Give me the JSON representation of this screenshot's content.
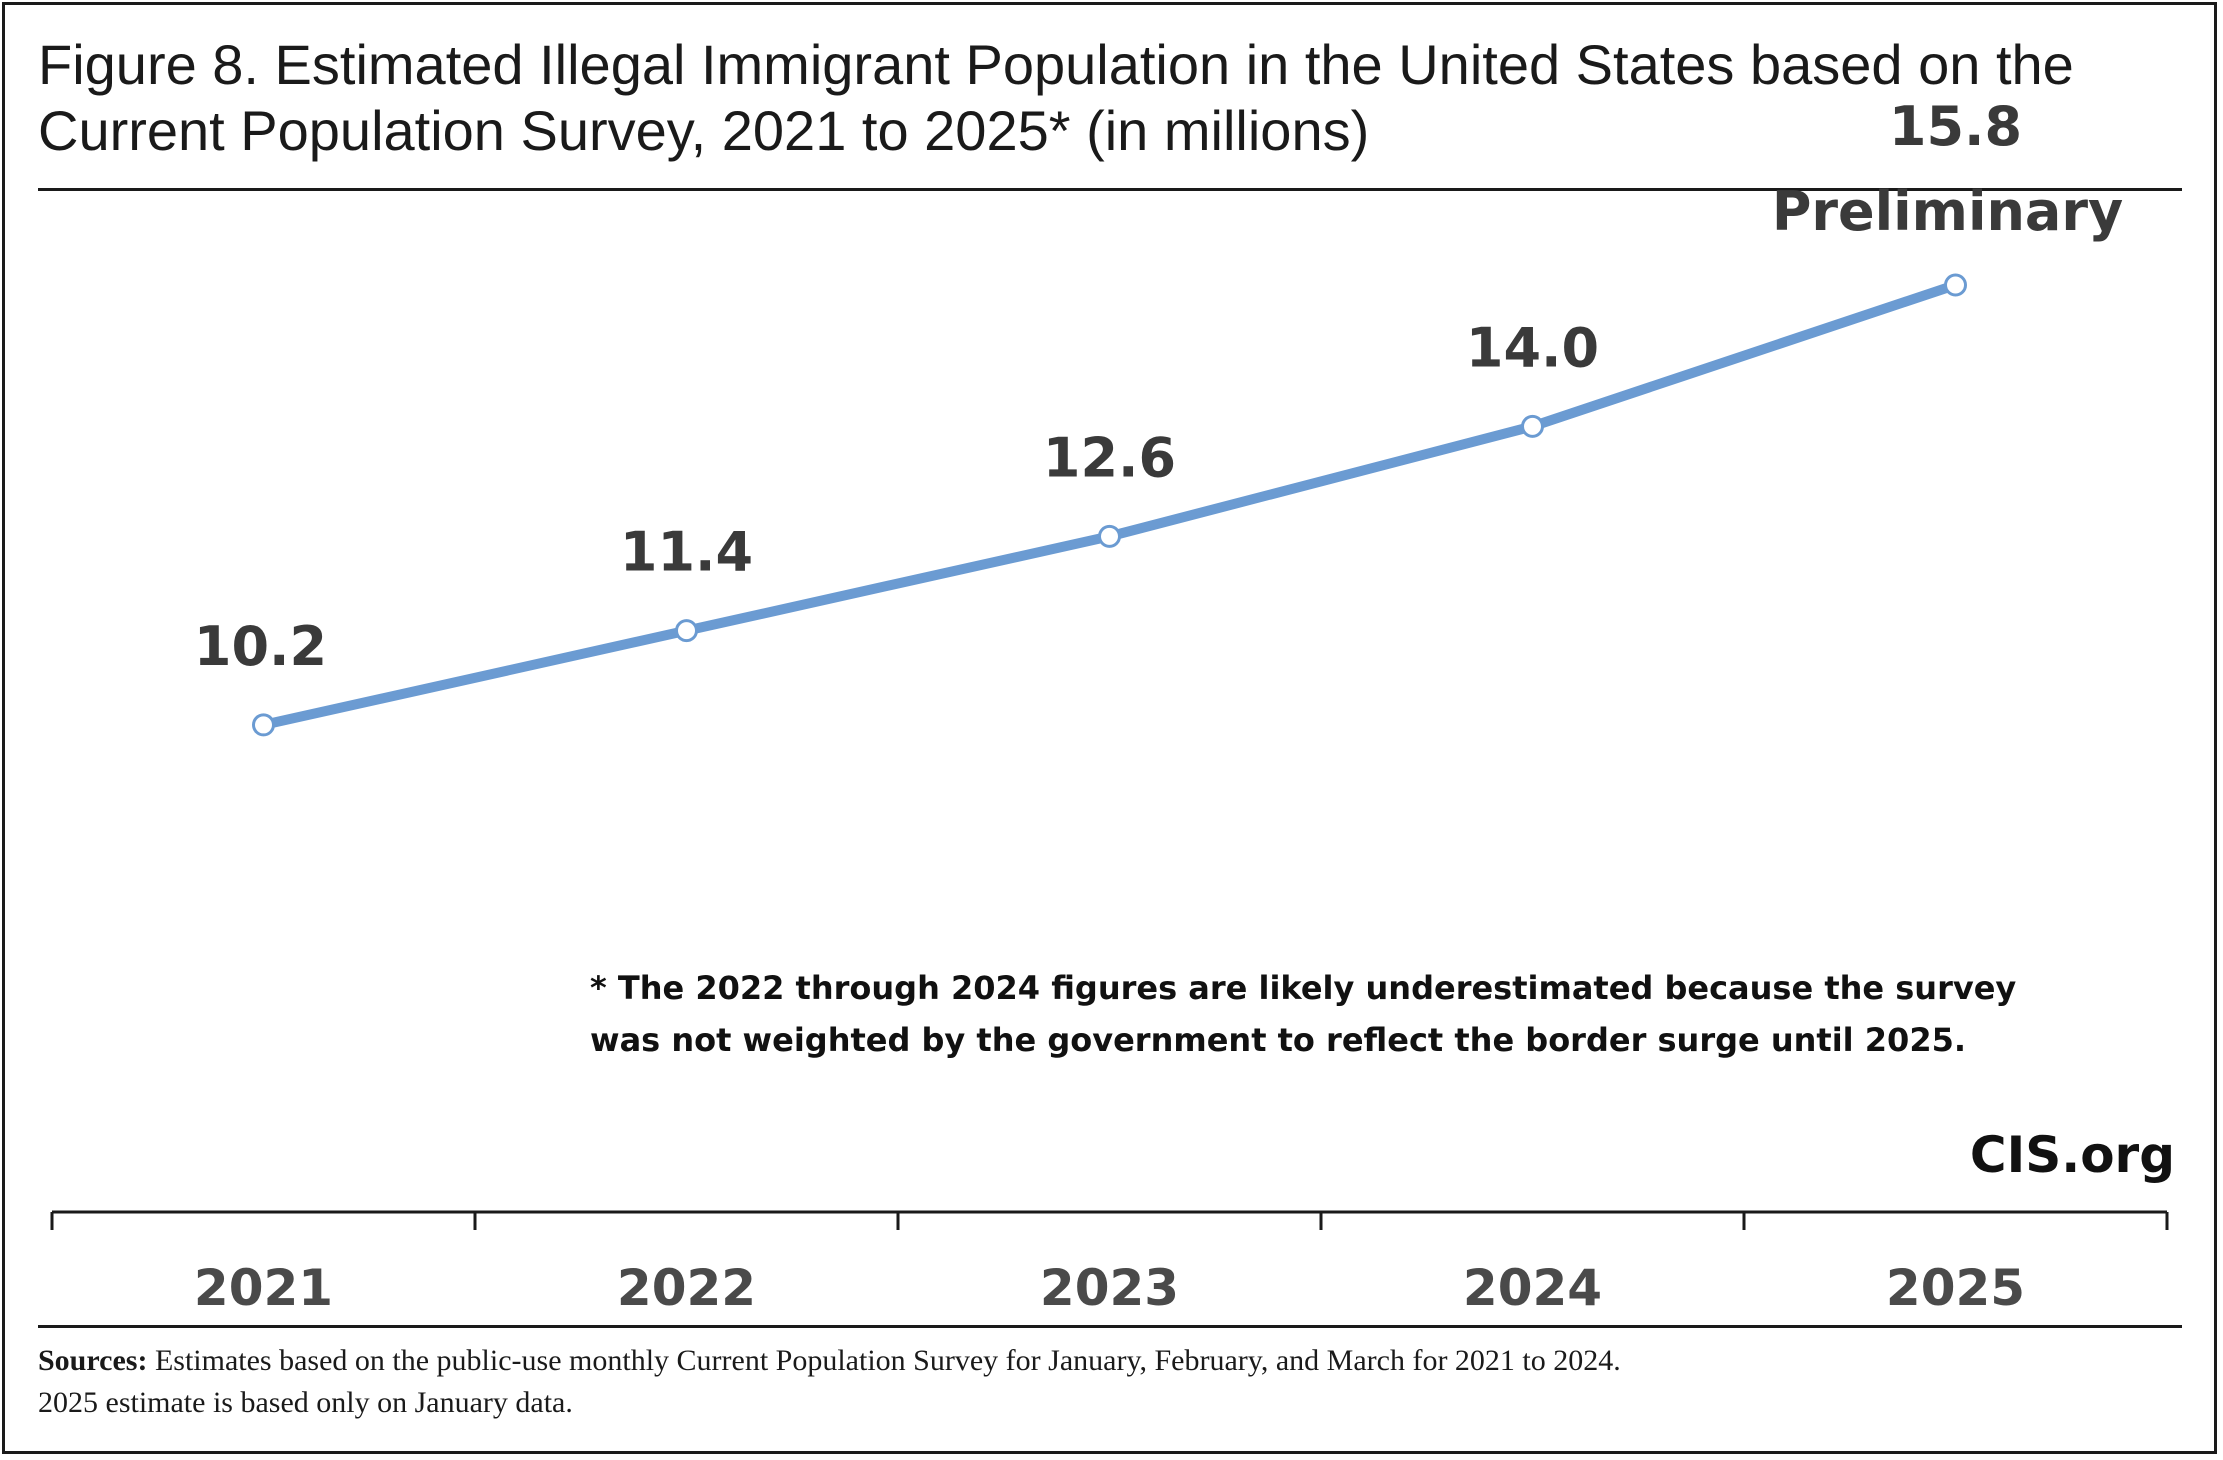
{
  "title": "Figure 8. Estimated Illegal Immigrant Population in the United States based on the Current Population Survey, 2021 to 2025* (in millions)",
  "note": "* The 2022 through 2024 figures are likely underestimated because the survey was not weighted by the government to reflect the border surge until 2025.",
  "brand": "CIS.org",
  "sources": {
    "label": "Sources:",
    "text": "Estimates based on the public-use monthly Current Population Survey for January, February, and March for 2021 to 2024.",
    "text2": "2025 estimate is based only on January data."
  },
  "colors": {
    "line": "#6b9bd2",
    "marker_fill": "#ffffff",
    "axis": "#1a1a1a"
  },
  "chart_data": {
    "type": "line",
    "title": "Figure 8. Estimated Illegal Immigrant Population in the United States based on the Current Population Survey, 2021 to 2025* (in millions)",
    "categories": [
      "2021",
      "2022",
      "2023",
      "2024",
      "2025"
    ],
    "series": [
      {
        "values": [
          10.2,
          11.4,
          12.6,
          14.0,
          15.8
        ]
      }
    ],
    "data_labels": [
      "10.2",
      "11.4",
      "12.6",
      "14.0",
      "15.8"
    ],
    "annotations": [
      {
        "category": "2025",
        "text": "Preliminary"
      }
    ],
    "ylim": [
      4,
      16.5
    ],
    "grid": false,
    "legend": "none"
  }
}
